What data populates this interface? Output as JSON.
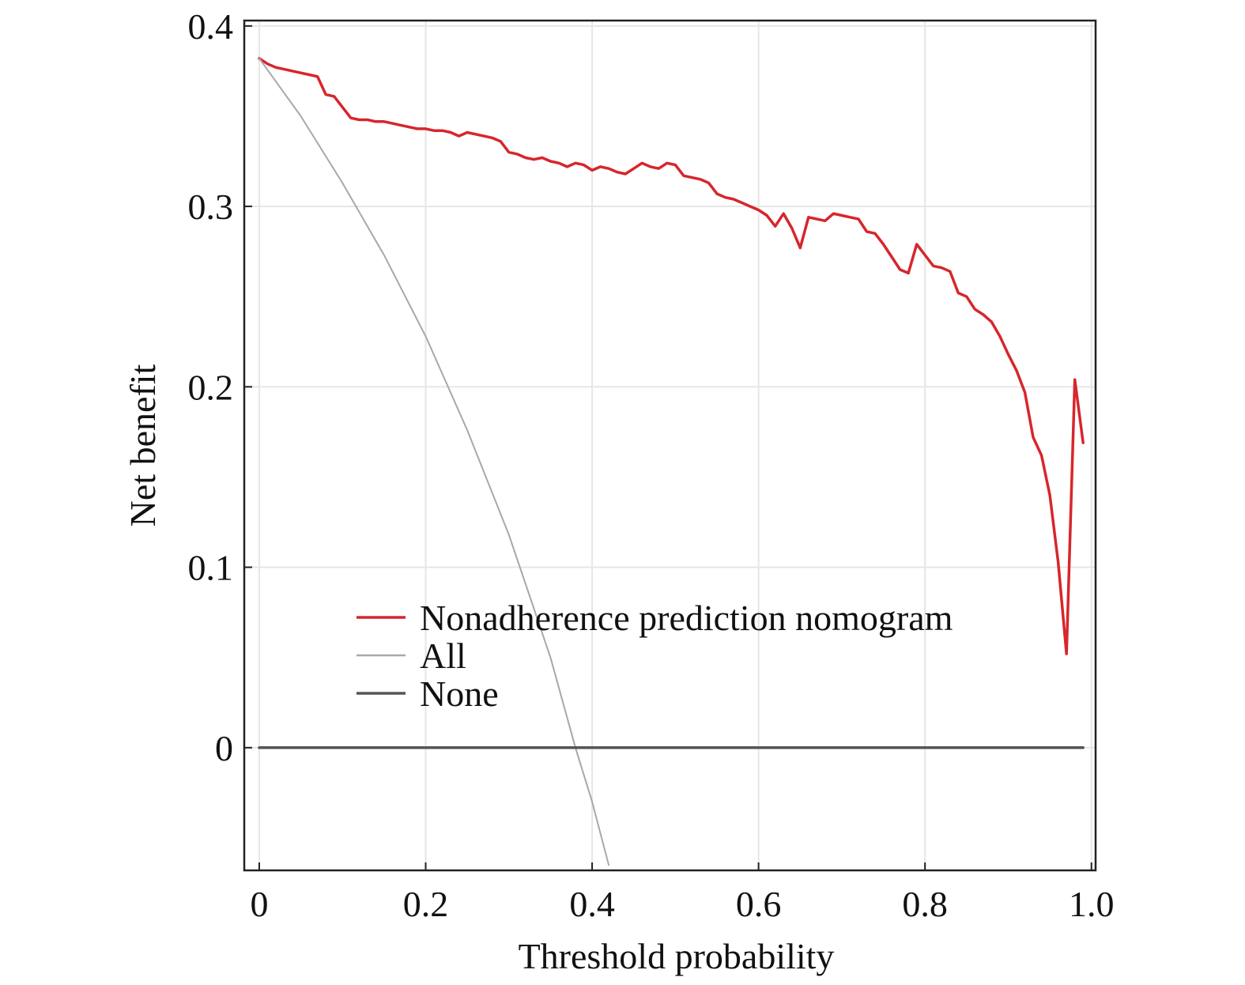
{
  "chart_data": {
    "type": "line",
    "xlabel": "Threshold probability",
    "ylabel": "Net benefit",
    "xlim": [
      -0.018,
      1.005
    ],
    "ylim": [
      -0.068,
      0.403
    ],
    "x_ticks": [
      0,
      0.2,
      0.4,
      0.6,
      0.8,
      1.0
    ],
    "x_tick_labels": [
      "0",
      "0.2",
      "0.4",
      "0.6",
      "0.8",
      "1.0"
    ],
    "y_ticks": [
      0,
      0.1,
      0.2,
      0.3,
      0.4
    ],
    "y_tick_labels": [
      "0",
      "0.1",
      "0.2",
      "0.3",
      "0.4"
    ],
    "grid": true,
    "legend_position": "lower-center",
    "series": [
      {
        "name": "Nonadherence prediction nomogram",
        "color": "#d7262c",
        "x": [
          0,
          0.01,
          0.02,
          0.03,
          0.04,
          0.05,
          0.06,
          0.07,
          0.08,
          0.09,
          0.1,
          0.11,
          0.12,
          0.13,
          0.14,
          0.15,
          0.16,
          0.17,
          0.18,
          0.19,
          0.2,
          0.21,
          0.22,
          0.23,
          0.24,
          0.25,
          0.26,
          0.27,
          0.28,
          0.29,
          0.3,
          0.31,
          0.32,
          0.33,
          0.34,
          0.35,
          0.36,
          0.37,
          0.38,
          0.39,
          0.4,
          0.41,
          0.42,
          0.43,
          0.44,
          0.45,
          0.46,
          0.47,
          0.48,
          0.49,
          0.5,
          0.51,
          0.52,
          0.53,
          0.54,
          0.55,
          0.56,
          0.57,
          0.58,
          0.59,
          0.6,
          0.61,
          0.62,
          0.63,
          0.64,
          0.65,
          0.66,
          0.67,
          0.68,
          0.69,
          0.7,
          0.71,
          0.72,
          0.73,
          0.74,
          0.75,
          0.76,
          0.77,
          0.78,
          0.79,
          0.8,
          0.81,
          0.82,
          0.83,
          0.84,
          0.85,
          0.86,
          0.87,
          0.88,
          0.89,
          0.9,
          0.91,
          0.92,
          0.93,
          0.94,
          0.95,
          0.96,
          0.97,
          0.98,
          0.99
        ],
        "y": [
          0.382,
          0.379,
          0.377,
          0.376,
          0.375,
          0.374,
          0.373,
          0.372,
          0.362,
          0.361,
          0.355,
          0.349,
          0.348,
          0.348,
          0.347,
          0.347,
          0.346,
          0.345,
          0.344,
          0.343,
          0.343,
          0.342,
          0.342,
          0.341,
          0.339,
          0.341,
          0.34,
          0.339,
          0.338,
          0.336,
          0.33,
          0.329,
          0.327,
          0.326,
          0.327,
          0.325,
          0.324,
          0.322,
          0.324,
          0.323,
          0.32,
          0.322,
          0.321,
          0.319,
          0.318,
          0.321,
          0.324,
          0.322,
          0.321,
          0.324,
          0.323,
          0.317,
          0.316,
          0.315,
          0.313,
          0.307,
          0.305,
          0.304,
          0.302,
          0.3,
          0.298,
          0.295,
          0.289,
          0.296,
          0.288,
          0.277,
          0.294,
          0.293,
          0.292,
          0.296,
          0.295,
          0.294,
          0.293,
          0.286,
          0.285,
          0.279,
          0.272,
          0.265,
          0.263,
          0.279,
          0.273,
          0.267,
          0.266,
          0.264,
          0.252,
          0.25,
          0.243,
          0.24,
          0.236,
          0.228,
          0.218,
          0.209,
          0.197,
          0.172,
          0.162,
          0.14,
          0.103,
          0.052,
          0.204,
          0.169
        ]
      },
      {
        "name": "All",
        "color": "#a8a8a8",
        "x": [
          0,
          0.05,
          0.1,
          0.15,
          0.2,
          0.25,
          0.3,
          0.35,
          0.38,
          0.4,
          0.42
        ],
        "y": [
          0.382,
          0.35,
          0.313,
          0.273,
          0.228,
          0.176,
          0.118,
          0.05,
          0.0,
          -0.03,
          -0.065
        ]
      },
      {
        "name": "None",
        "color": "#555555",
        "x": [
          0,
          0.99
        ],
        "y": [
          0,
          0
        ]
      }
    ]
  }
}
